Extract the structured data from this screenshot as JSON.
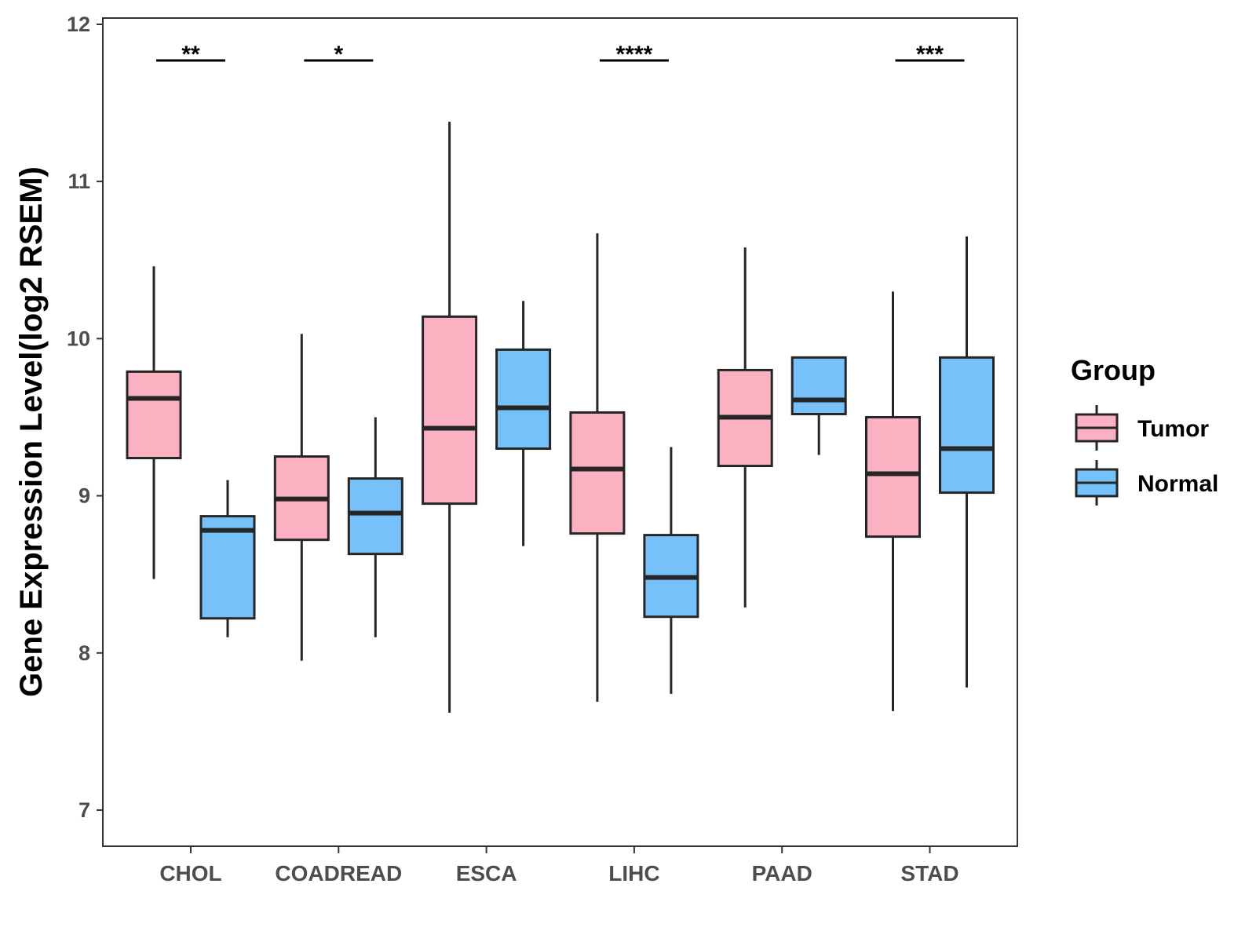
{
  "chart_data": {
    "type": "boxplot",
    "title": "",
    "xlabel": "",
    "ylabel": "Gene Expression Level(log2 RSEM)",
    "ylim": [
      6.77,
      12.04
    ],
    "yticks": [
      7,
      8,
      9,
      10,
      11,
      12
    ],
    "grid": false,
    "categories": [
      "CHOL",
      "COADREAD",
      "ESCA",
      "LIHC",
      "PAAD",
      "STAD"
    ],
    "legend": {
      "title": "Group",
      "position": "right",
      "entries": [
        {
          "name": "Tumor",
          "color": "#FCB1C3"
        },
        {
          "name": "Normal",
          "color": "#76C1FA"
        }
      ]
    },
    "series": [
      {
        "name": "Tumor",
        "color": "#FCB1C3",
        "boxes": [
          {
            "category": "CHOL",
            "whisker_low": 8.47,
            "q1": 9.24,
            "median": 9.62,
            "q3": 9.79,
            "whisker_high": 10.46
          },
          {
            "category": "COADREAD",
            "whisker_low": 7.95,
            "q1": 8.72,
            "median": 8.98,
            "q3": 9.25,
            "whisker_high": 10.03
          },
          {
            "category": "ESCA",
            "whisker_low": 7.62,
            "q1": 8.95,
            "median": 9.43,
            "q3": 10.14,
            "whisker_high": 11.38
          },
          {
            "category": "LIHC",
            "whisker_low": 7.69,
            "q1": 8.76,
            "median": 9.17,
            "q3": 9.53,
            "whisker_high": 10.67
          },
          {
            "category": "PAAD",
            "whisker_low": 8.29,
            "q1": 9.19,
            "median": 9.5,
            "q3": 9.8,
            "whisker_high": 10.58
          },
          {
            "category": "STAD",
            "whisker_low": 7.63,
            "q1": 8.74,
            "median": 9.14,
            "q3": 9.5,
            "whisker_high": 10.3
          }
        ]
      },
      {
        "name": "Normal",
        "color": "#76C1FA",
        "boxes": [
          {
            "category": "CHOL",
            "whisker_low": 8.1,
            "q1": 8.22,
            "median": 8.78,
            "q3": 8.87,
            "whisker_high": 9.1
          },
          {
            "category": "COADREAD",
            "whisker_low": 8.1,
            "q1": 8.63,
            "median": 8.89,
            "q3": 9.11,
            "whisker_high": 9.5
          },
          {
            "category": "ESCA",
            "whisker_low": 8.68,
            "q1": 9.3,
            "median": 9.56,
            "q3": 9.93,
            "whisker_high": 10.24
          },
          {
            "category": "LIHC",
            "whisker_low": 7.74,
            "q1": 8.23,
            "median": 8.48,
            "q3": 8.75,
            "whisker_high": 9.31
          },
          {
            "category": "PAAD",
            "whisker_low": 9.26,
            "q1": 9.52,
            "median": 9.61,
            "q3": 9.88,
            "whisker_high": 9.88
          },
          {
            "category": "STAD",
            "whisker_low": 7.78,
            "q1": 9.02,
            "median": 9.3,
            "q3": 9.88,
            "whisker_high": 10.65
          }
        ]
      }
    ],
    "annotations": [
      {
        "category": "CHOL",
        "label": "**",
        "y": 11.77
      },
      {
        "category": "COADREAD",
        "label": "*",
        "y": 11.77
      },
      {
        "category": "LIHC",
        "label": "****",
        "y": 11.77
      },
      {
        "category": "STAD",
        "label": "***",
        "y": 11.77
      }
    ]
  }
}
